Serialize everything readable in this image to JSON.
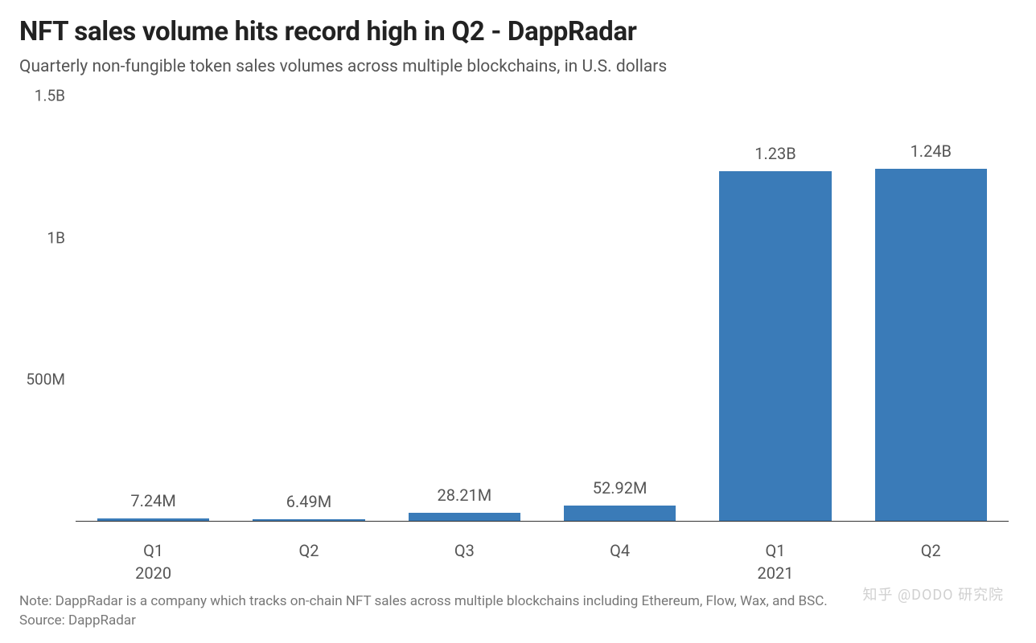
{
  "title": "NFT sales volume hits record high in Q2 - DappRadar",
  "subtitle": "Quarterly non-fungible token sales volumes across multiple blockchains, in U.S. dollars",
  "chart": {
    "type": "bar",
    "ylim_max": 1500000000,
    "ylim_min": 0,
    "yticks": [
      {
        "value": 1500000000,
        "label": "1.5B"
      },
      {
        "value": 1000000000,
        "label": "1B"
      },
      {
        "value": 500000000,
        "label": "500M"
      }
    ],
    "bar_color": "#3a7bb8",
    "axis_color": "#333333",
    "text_color": "#555555",
    "background_color": "#ffffff",
    "bars": [
      {
        "category": "Q1",
        "year": "2020",
        "value": 7240000,
        "label": "7.24M"
      },
      {
        "category": "Q2",
        "year": "",
        "value": 6490000,
        "label": "6.49M"
      },
      {
        "category": "Q3",
        "year": "",
        "value": 28210000,
        "label": "28.21M"
      },
      {
        "category": "Q4",
        "year": "",
        "value": 52920000,
        "label": "52.92M"
      },
      {
        "category": "Q1",
        "year": "2021",
        "value": 1230000000,
        "label": "1.23B"
      },
      {
        "category": "Q2",
        "year": "",
        "value": 1240000000,
        "label": "1.24B"
      }
    ],
    "title_fontsize": 33,
    "subtitle_fontsize": 21,
    "label_fontsize": 20,
    "bar_width_pct": 72
  },
  "note": "Note: DappRadar is a company which tracks on-chain NFT sales across multiple blockchains including Ethereum, Flow, Wax, and BSC.",
  "source": "Source: DappRadar",
  "watermark": "知乎 @DODO 研究院"
}
